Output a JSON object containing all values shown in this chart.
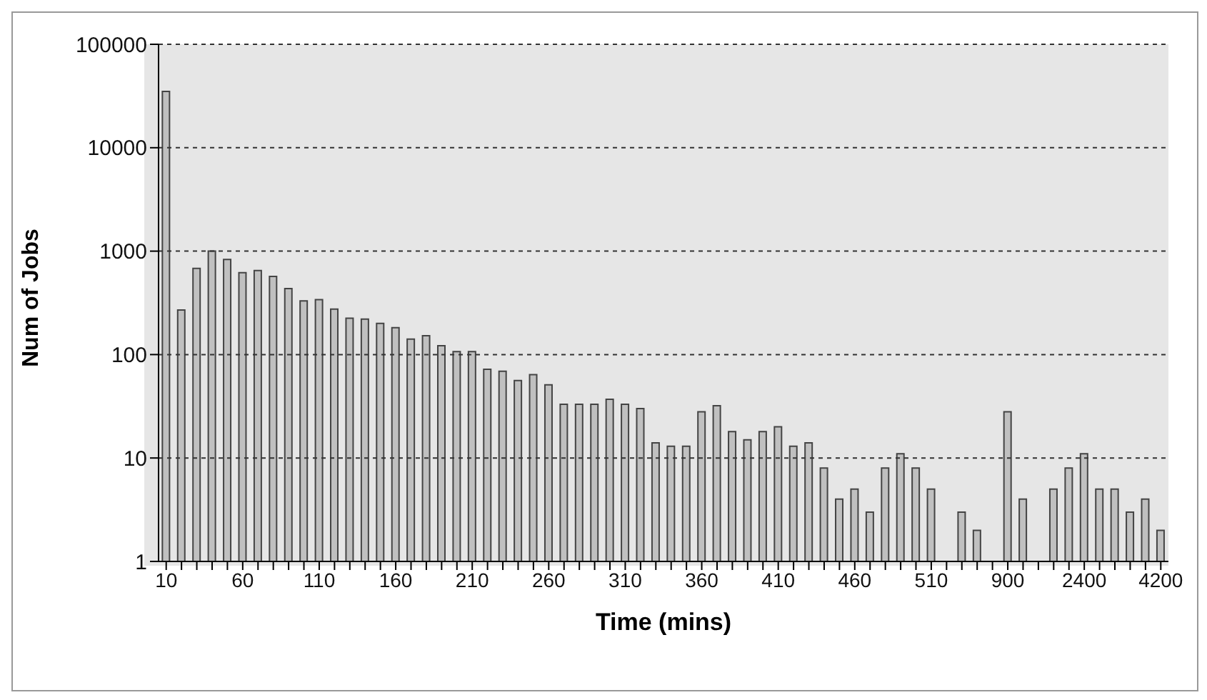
{
  "chart_data": {
    "type": "bar",
    "xlabel": "Time (mins)",
    "ylabel": "Num of Jobs",
    "categories": [
      "10",
      null,
      null,
      null,
      null,
      "60",
      null,
      null,
      null,
      null,
      "110",
      null,
      null,
      null,
      null,
      "160",
      null,
      null,
      null,
      null,
      "210",
      null,
      null,
      null,
      null,
      "260",
      null,
      null,
      null,
      null,
      "310",
      null,
      null,
      null,
      null,
      "360",
      null,
      null,
      null,
      null,
      "410",
      null,
      null,
      null,
      null,
      "460",
      null,
      null,
      null,
      null,
      "510",
      null,
      null,
      null,
      null,
      "900",
      null,
      null,
      null,
      null,
      "2400",
      null,
      null,
      null,
      null,
      "4200"
    ],
    "values": [
      35000,
      270,
      680,
      1000,
      830,
      620,
      650,
      570,
      435,
      330,
      340,
      275,
      225,
      220,
      200,
      182,
      141,
      152,
      122,
      107,
      107,
      72,
      69,
      56,
      64,
      51,
      33,
      33,
      33,
      37,
      33,
      30,
      14,
      13,
      13,
      28,
      32,
      18,
      15,
      18,
      20,
      13,
      14,
      8,
      4,
      5,
      3,
      8,
      11,
      8,
      5,
      null,
      3,
      2,
      null,
      28,
      4,
      null,
      5,
      8,
      11,
      5,
      5,
      3,
      4,
      2
    ],
    "color": "#c0c0c0",
    "log": "y",
    "ylim": [
      1,
      100000
    ],
    "yticks": [
      1,
      10,
      100,
      1000,
      10000,
      100000
    ],
    "grid": "y"
  }
}
